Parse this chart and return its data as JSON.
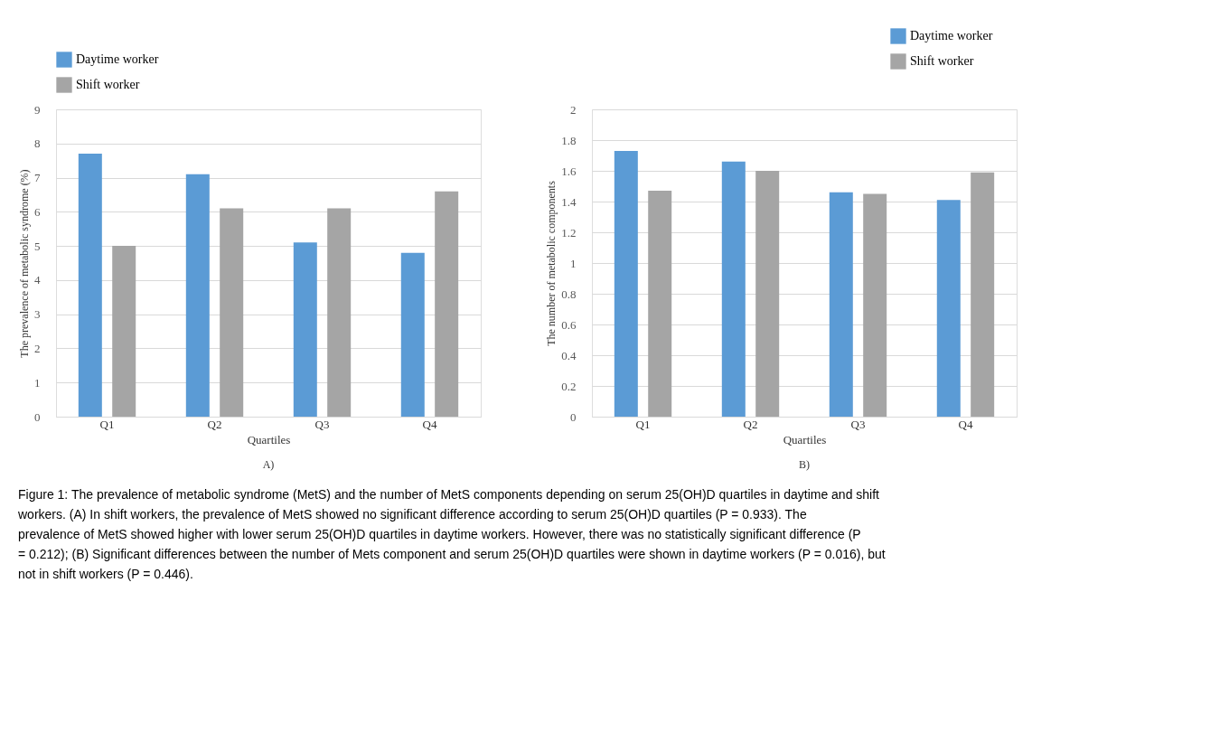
{
  "chart_data": [
    {
      "type": "bar",
      "xlabel": "Quartiles",
      "ylabel": "The prevalence of metabolic syndrome (%)",
      "categories": [
        "Q1",
        "Q2",
        "Q3",
        "Q4"
      ],
      "series": [
        {
          "name": "Daytime worker",
          "color": "#5b9bd5",
          "values": [
            7.7,
            7.1,
            5.1,
            4.8
          ]
        },
        {
          "name": "Shift worker",
          "color": "#a5a5a5",
          "values": [
            5.0,
            6.1,
            6.1,
            6.6
          ]
        }
      ],
      "ylim": [
        0,
        9
      ],
      "yticks": [
        0,
        1,
        2,
        3,
        4,
        5,
        6,
        7,
        8,
        9
      ],
      "grid": "y",
      "legend": "top",
      "annotations": [
        "A)"
      ]
    },
    {
      "type": "bar",
      "xlabel": "Quartiles",
      "ylabel": "The number of metabolic components",
      "categories": [
        "Q1",
        "Q2",
        "Q3",
        "Q4"
      ],
      "series": [
        {
          "name": "Daytime worker",
          "color": "#5b9bd5",
          "values": [
            1.73,
            1.66,
            1.46,
            1.41
          ]
        },
        {
          "name": "Shift worker",
          "color": "#a5a5a5",
          "values": [
            1.47,
            1.6,
            1.45,
            1.59
          ]
        }
      ],
      "ylim": [
        0,
        2
      ],
      "yticks": [
        0,
        0.2,
        0.4,
        0.6,
        0.8,
        1,
        1.2,
        1.4,
        1.6,
        1.8,
        2
      ],
      "grid": "y",
      "legend": "top right",
      "annotations": [
        "B)",
        "Figure 1: The prevalence of metabolic syndrome (MetS) and the number of MetS components depending on serum 25(OH)D quartiles in daytime and shift workers. (A) In shift workers, the prevalence of MetS showed no significant difference according to serum 25(OH)D quartiles (P = 0.933). The prevalence of MetS showed higher with lower serum 25(OH)D quartiles in daytime workers. However, there was no statistically significant difference (P = 0.212); (B) Significant differences between the number of Mets component and serum 25(OH)D quartiles were shown in daytime workers (P = 0.016), but not in shift workers (P = 0.446)."
      ]
    }
  ]
}
